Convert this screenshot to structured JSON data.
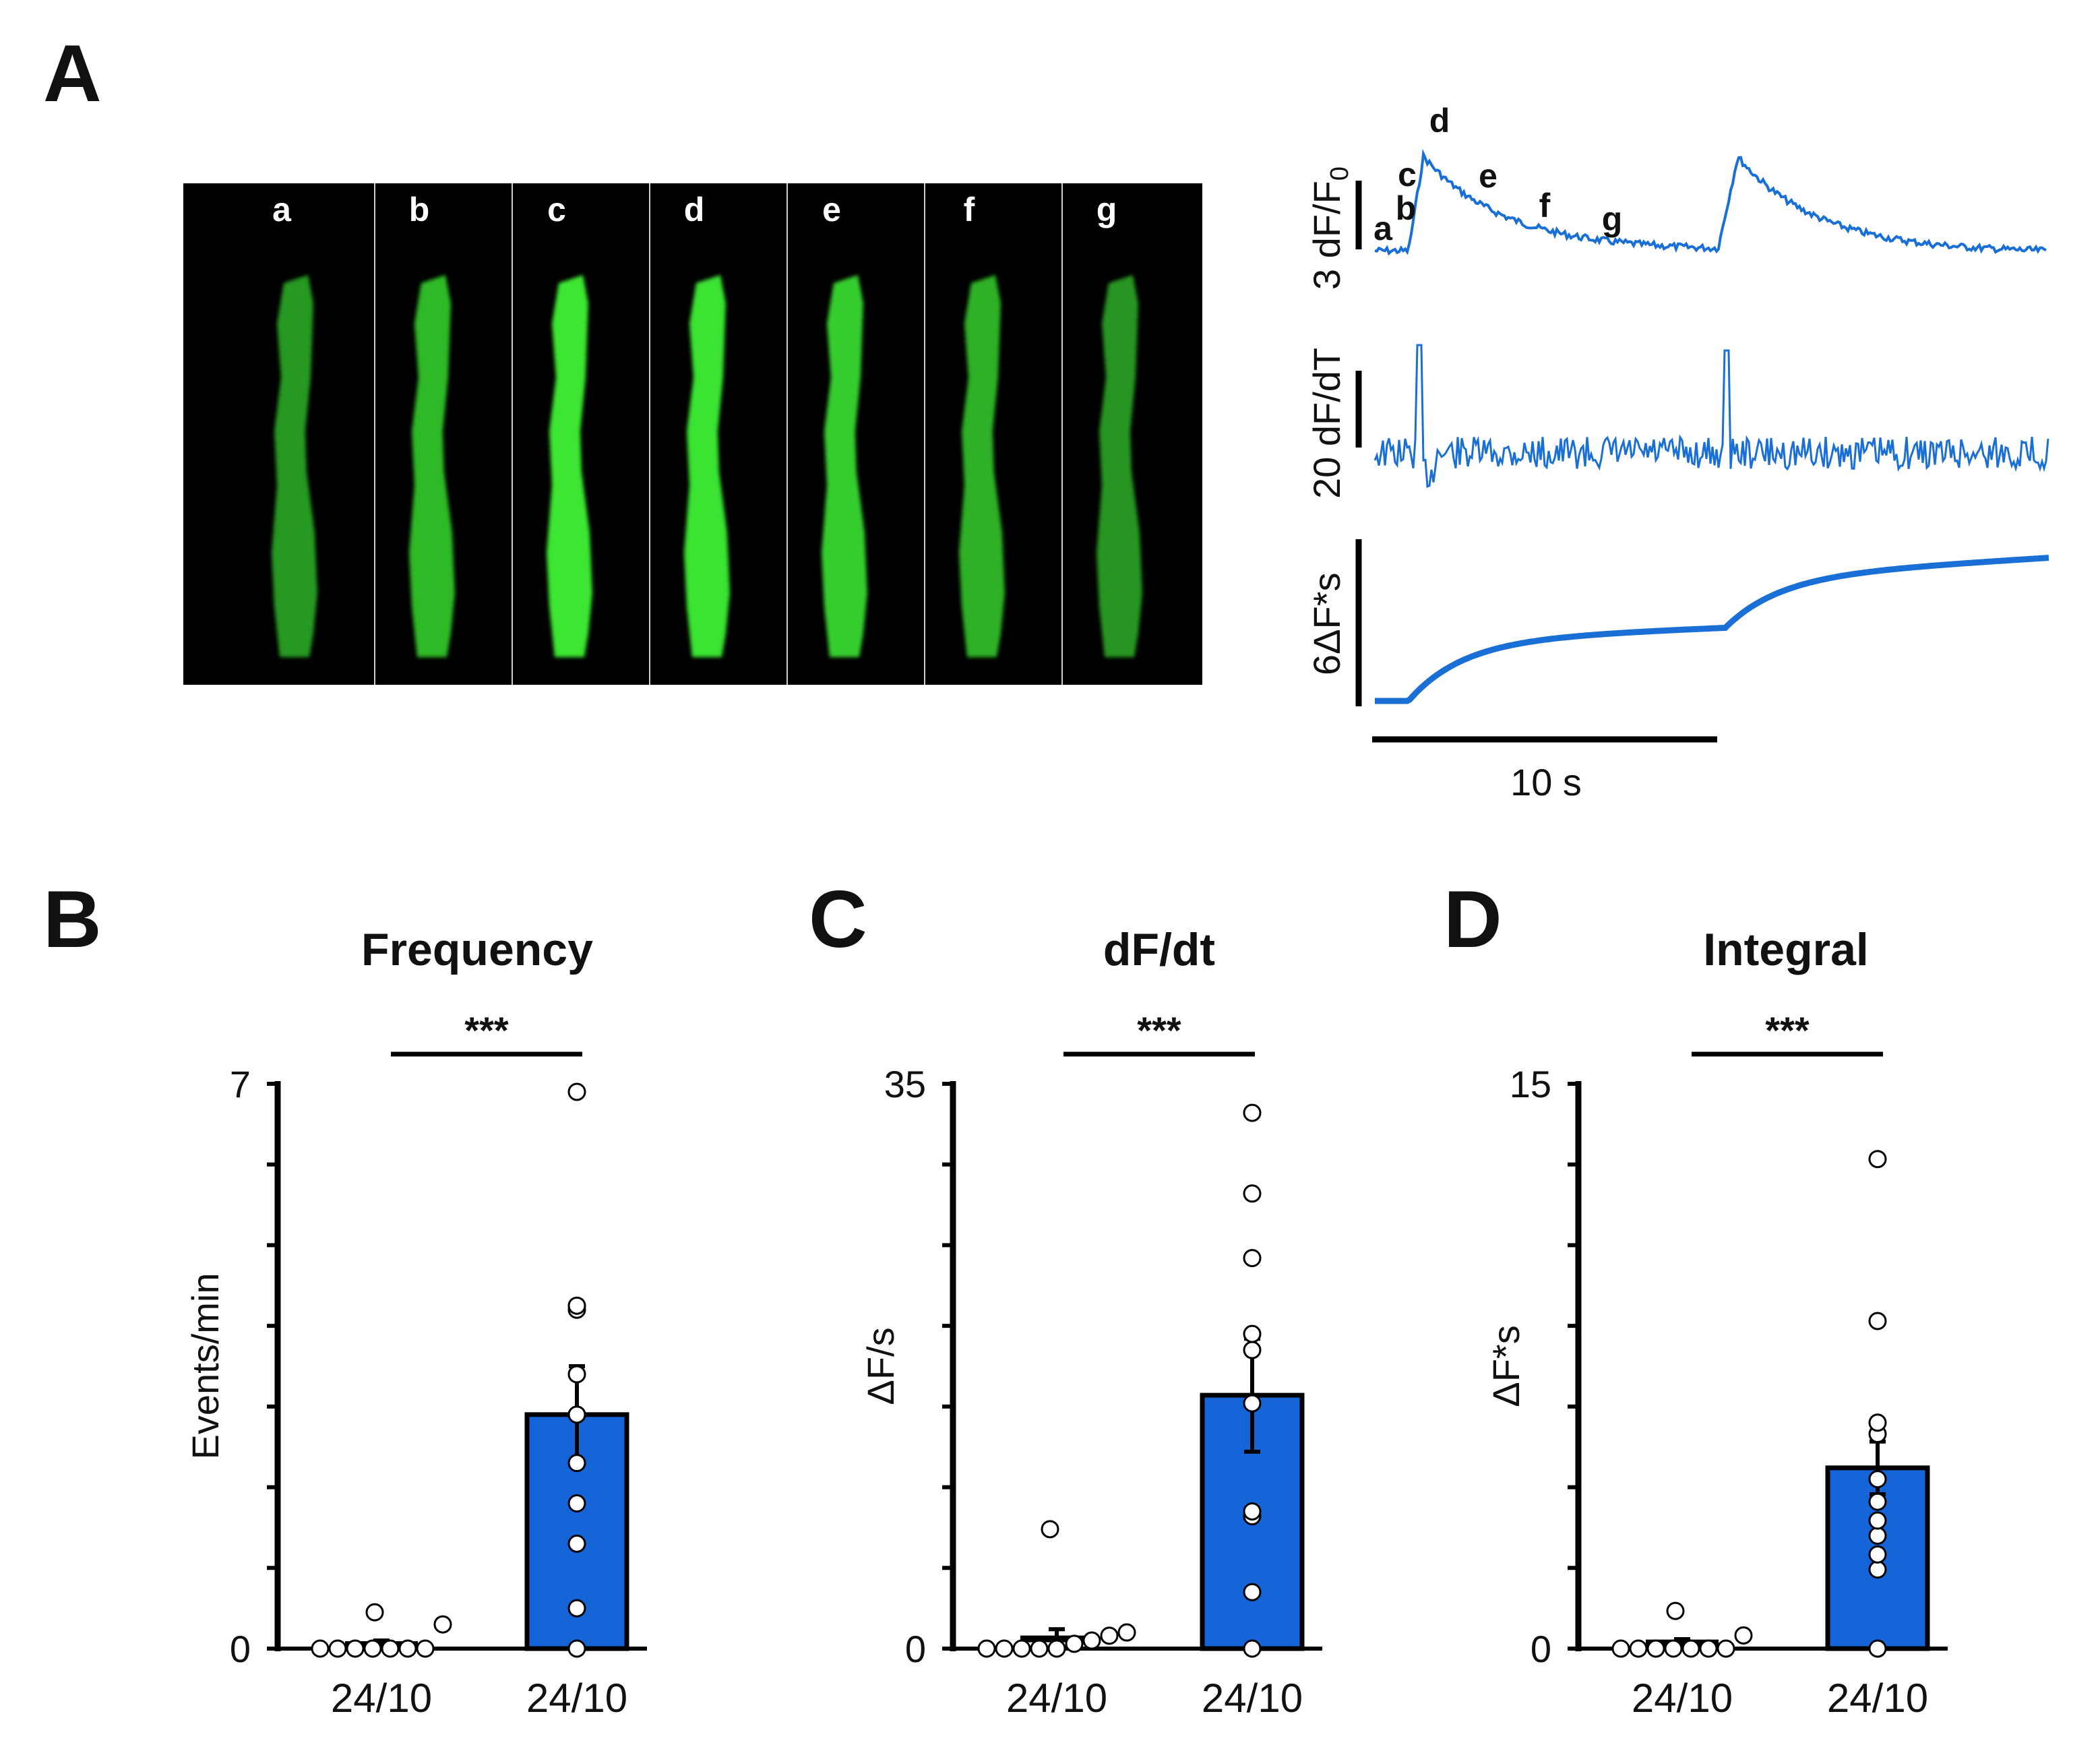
{
  "panel_letters": {
    "a": "A",
    "b": "B",
    "c": "C",
    "d": "D"
  },
  "colors": {
    "bar": "#1565d8",
    "trace": "#1a6fd6",
    "cell": "#2fbf2f",
    "image_bg": "#000000"
  },
  "panel_a": {
    "frame_labels": [
      "a",
      "b",
      "c",
      "d",
      "e",
      "f",
      "g"
    ],
    "frame_intensity": [
      0.45,
      0.68,
      1.0,
      0.98,
      0.82,
      0.62,
      0.42
    ],
    "trace_letters": [
      "a",
      "b",
      "c",
      "d",
      "e",
      "f",
      "g"
    ],
    "scale_labels": {
      "trace1_prefix": "3 dF/F",
      "trace1_sub": "0",
      "trace2": "20 dF/dT",
      "trace3": "6ΔF*s",
      "time": "10 s"
    }
  },
  "chart_data": [
    {
      "type": "bar",
      "title": "Frequency",
      "ylabel": "Events/min",
      "ylim": [
        0,
        7
      ],
      "ytick_labels": [
        "0",
        "7"
      ],
      "categories": [
        "24/10",
        "24/10"
      ],
      "values": [
        0.05,
        2.9
      ],
      "errors": [
        0.05,
        0.6
      ],
      "bar_filled": [
        false,
        true
      ],
      "points": [
        [
          0,
          0,
          0,
          0,
          0,
          0,
          0,
          0.3,
          0.45
        ],
        [
          0,
          0.5,
          1.3,
          1.8,
          2.3,
          2.9,
          3.4,
          4.2,
          4.25,
          6.9
        ]
      ],
      "significance": "***"
    },
    {
      "type": "bar",
      "title": "dF/dt",
      "ylabel": "ΔF/s",
      "ylim": [
        0,
        35
      ],
      "ytick_labels": [
        "0",
        "35"
      ],
      "categories": [
        "24/10",
        "24/10"
      ],
      "values": [
        0.6,
        15.7
      ],
      "errors": [
        0.6,
        3.5
      ],
      "bar_filled": [
        false,
        true
      ],
      "points": [
        [
          0,
          0,
          0,
          0,
          0,
          0.3,
          0.5,
          0.8,
          1.0,
          7.4
        ],
        [
          0,
          3.5,
          8.2,
          8.5,
          15.2,
          18.5,
          19.5,
          24.2,
          28.2,
          33.2
        ]
      ],
      "significance": "***"
    },
    {
      "type": "bar",
      "title": "Integral",
      "ylabel": "ΔF*s",
      "ylim": [
        0,
        15
      ],
      "ytick_labels": [
        "0",
        "15"
      ],
      "categories": [
        "24/10",
        "24/10"
      ],
      "values": [
        0.15,
        4.8
      ],
      "errors": [
        0.1,
        0.7
      ],
      "bar_filled": [
        false,
        true
      ],
      "points": [
        [
          0,
          0,
          0,
          0,
          0,
          0,
          0,
          0.35,
          1.0
        ],
        [
          0,
          2.1,
          2.5,
          3.0,
          3.4,
          3.9,
          4.5,
          5.7,
          6.0,
          8.7,
          13.0
        ]
      ],
      "significance": "***"
    }
  ]
}
